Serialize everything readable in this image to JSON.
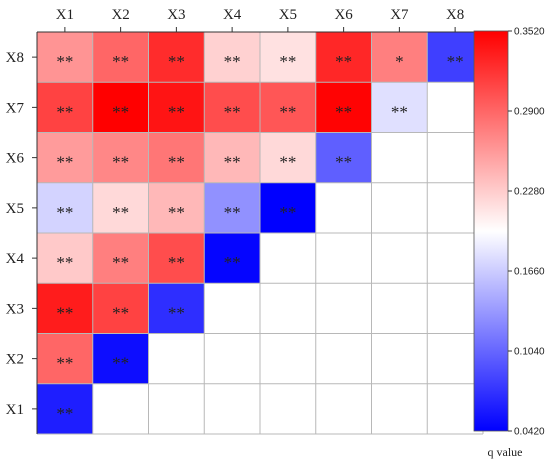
{
  "chart_data": {
    "type": "heatmap",
    "x_categories": [
      "X1",
      "X2",
      "X3",
      "X4",
      "X5",
      "X6",
      "X7",
      "X8"
    ],
    "y_categories": [
      "X8",
      "X7",
      "X6",
      "X5",
      "X4",
      "X3",
      "X2",
      "X1"
    ],
    "values": [
      [
        0.262,
        0.29,
        0.325,
        0.225,
        0.215,
        0.328,
        0.275,
        0.08
      ],
      [
        0.312,
        0.352,
        0.34,
        0.305,
        0.3,
        0.35,
        0.178,
        null
      ],
      [
        0.258,
        0.27,
        0.28,
        0.24,
        0.22,
        0.1,
        null,
        null
      ],
      [
        0.17,
        0.22,
        0.24,
        0.13,
        0.042,
        null,
        null,
        null
      ],
      [
        0.23,
        0.275,
        0.305,
        0.045,
        null,
        null,
        null,
        null
      ],
      [
        0.335,
        0.312,
        0.07,
        null,
        null,
        null,
        null,
        null
      ],
      [
        0.29,
        0.05,
        null,
        null,
        null,
        null,
        null,
        null
      ],
      [
        0.06,
        null,
        null,
        null,
        null,
        null,
        null,
        null
      ]
    ],
    "annotations": [
      [
        "**",
        "**",
        "**",
        "**",
        "**",
        "**",
        "*",
        "**"
      ],
      [
        "**",
        "**",
        "**",
        "**",
        "**",
        "**",
        "**",
        ""
      ],
      [
        "**",
        "**",
        "**",
        "**",
        "**",
        "**",
        "",
        ""
      ],
      [
        "**",
        "**",
        "**",
        "**",
        "**",
        "",
        "",
        ""
      ],
      [
        "**",
        "**",
        "**",
        "**",
        "",
        "",
        "",
        ""
      ],
      [
        "**",
        "**",
        "**",
        "",
        "",
        "",
        "",
        ""
      ],
      [
        "**",
        "**",
        "",
        "",
        "",
        "",
        "",
        ""
      ],
      [
        "**",
        "",
        "",
        "",
        "",
        "",
        "",
        ""
      ]
    ],
    "colorbar": {
      "ticks": [
        "0.0420",
        "0.1040",
        "0.1660",
        "0.2280",
        "0.2900",
        "0.3520"
      ],
      "vmin": 0.042,
      "vmax": 0.352,
      "label": "q value",
      "colors": {
        "low": "#0000ff",
        "mid": "#ffffff",
        "high": "#ff0000"
      }
    },
    "grid": true,
    "legend_position": "right"
  }
}
